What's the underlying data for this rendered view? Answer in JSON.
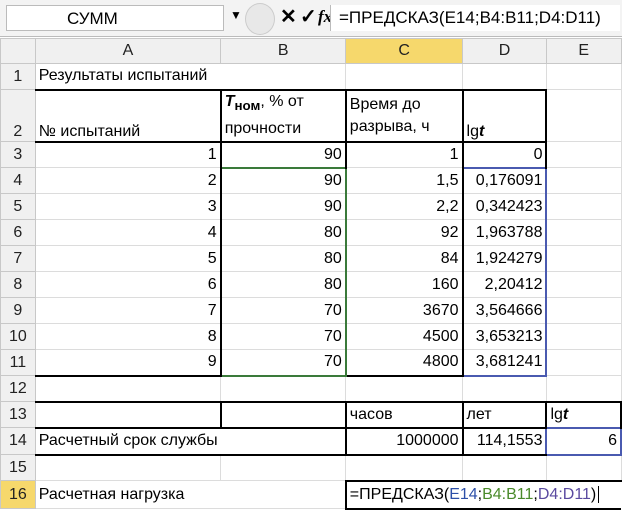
{
  "formula_bar": {
    "name_box": "СУММ",
    "cancel": "✕",
    "enter": "✓",
    "fx": "fx",
    "formula": "=ПРЕДСКАЗ(E14;B4:B11;D4:D11)"
  },
  "columns": [
    "A",
    "B",
    "C",
    "D",
    "E"
  ],
  "rows": {
    "r1": {
      "A": "Результаты испытаний"
    },
    "r2": {
      "A": "№ испытаний",
      "B_main": "T",
      "B_sub": "ном",
      "B_rest": ", % от",
      "B_line2": "прочности",
      "C_line1": "Время до",
      "C_line2": "разрыва, ч",
      "D_main": "lg",
      "D_it": "t"
    },
    "data": [
      {
        "A": "1",
        "B": "90",
        "C": "1",
        "D": "0"
      },
      {
        "A": "2",
        "B": "90",
        "C": "1,5",
        "D": "0,176091"
      },
      {
        "A": "3",
        "B": "90",
        "C": "2,2",
        "D": "0,342423"
      },
      {
        "A": "4",
        "B": "80",
        "C": "92",
        "D": "1,963788"
      },
      {
        "A": "5",
        "B": "80",
        "C": "84",
        "D": "1,924279"
      },
      {
        "A": "6",
        "B": "80",
        "C": "160",
        "D": "2,20412"
      },
      {
        "A": "7",
        "B": "70",
        "C": "3670",
        "D": "3,564666"
      },
      {
        "A": "8",
        "B": "70",
        "C": "4500",
        "D": "3,653213"
      },
      {
        "A": "9",
        "B": "70",
        "C": "4800",
        "D": "3,681241"
      }
    ],
    "r13": {
      "C": "часов",
      "D": "лет",
      "E_main": "lg",
      "E_it": "t"
    },
    "r14": {
      "A": "Расчетный срок службы",
      "C": "1000000",
      "D": "114,1553",
      "E": "6"
    },
    "r16": {
      "A": "Расчетная нагрузка",
      "f0": "=ПРЕДСКАЗ(",
      "f1": "E14",
      ";1": ";",
      "f2": "B4:B11",
      ";2": ";",
      "f3": "D4:D11",
      "f4": ")"
    }
  },
  "row_numbers": [
    "1",
    "2",
    "3",
    "4",
    "5",
    "6",
    "7",
    "8",
    "9",
    "10",
    "11",
    "12",
    "13",
    "14",
    "15",
    "16"
  ]
}
